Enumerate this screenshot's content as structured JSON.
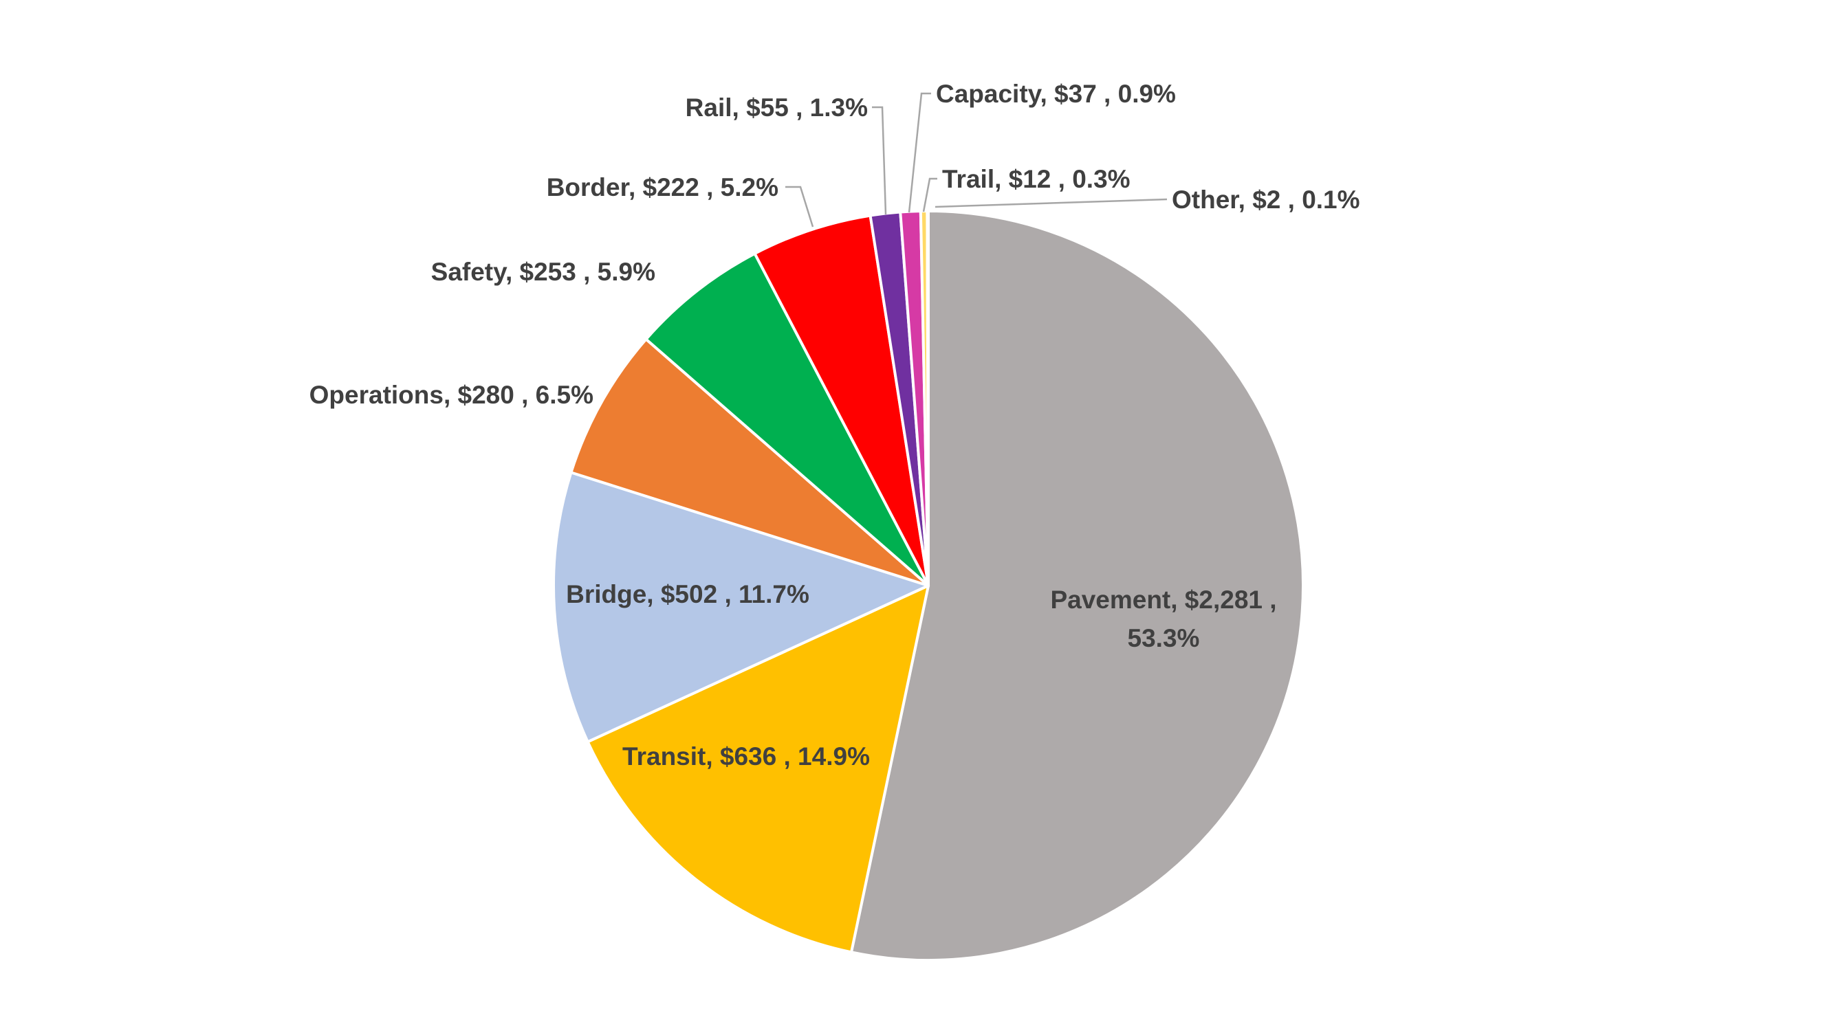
{
  "chart_data": {
    "type": "pie",
    "title": "",
    "start_angle_deg": 0,
    "direction": "clockwise",
    "slices": [
      {
        "name": "Pavement",
        "value": 2281,
        "value_label": "$2,281",
        "percent": 53.3,
        "percent_label": "53.3%",
        "color": "#aeaaaa"
      },
      {
        "name": "Transit",
        "value": 636,
        "value_label": "$636",
        "percent": 14.9,
        "percent_label": "14.9%",
        "color": "#ffc000"
      },
      {
        "name": "Bridge",
        "value": 502,
        "value_label": "$502",
        "percent": 11.7,
        "percent_label": "11.7%",
        "color": "#b4c7e7"
      },
      {
        "name": "Operations",
        "value": 280,
        "value_label": "$280",
        "percent": 6.5,
        "percent_label": "6.5%",
        "color": "#ed7d31"
      },
      {
        "name": "Safety",
        "value": 253,
        "value_label": "$253",
        "percent": 5.9,
        "percent_label": "5.9%",
        "color": "#00b050"
      },
      {
        "name": "Border",
        "value": 222,
        "value_label": "$222",
        "percent": 5.2,
        "percent_label": "5.2%",
        "color": "#ff0000"
      },
      {
        "name": "Rail",
        "value": 55,
        "value_label": "$55",
        "percent": 1.3,
        "percent_label": "1.3%",
        "color": "#7030a0"
      },
      {
        "name": "Capacity",
        "value": 37,
        "value_label": "$37",
        "percent": 0.9,
        "percent_label": "0.9%",
        "color": "#d63aa5"
      },
      {
        "name": "Trail",
        "value": 12,
        "value_label": "$12",
        "percent": 0.3,
        "percent_label": "0.3%",
        "color": "#ffd966"
      },
      {
        "name": "Other",
        "value": 2,
        "value_label": "$2",
        "percent": 0.1,
        "percent_label": "0.1%",
        "color": "#a9d18e"
      }
    ]
  }
}
